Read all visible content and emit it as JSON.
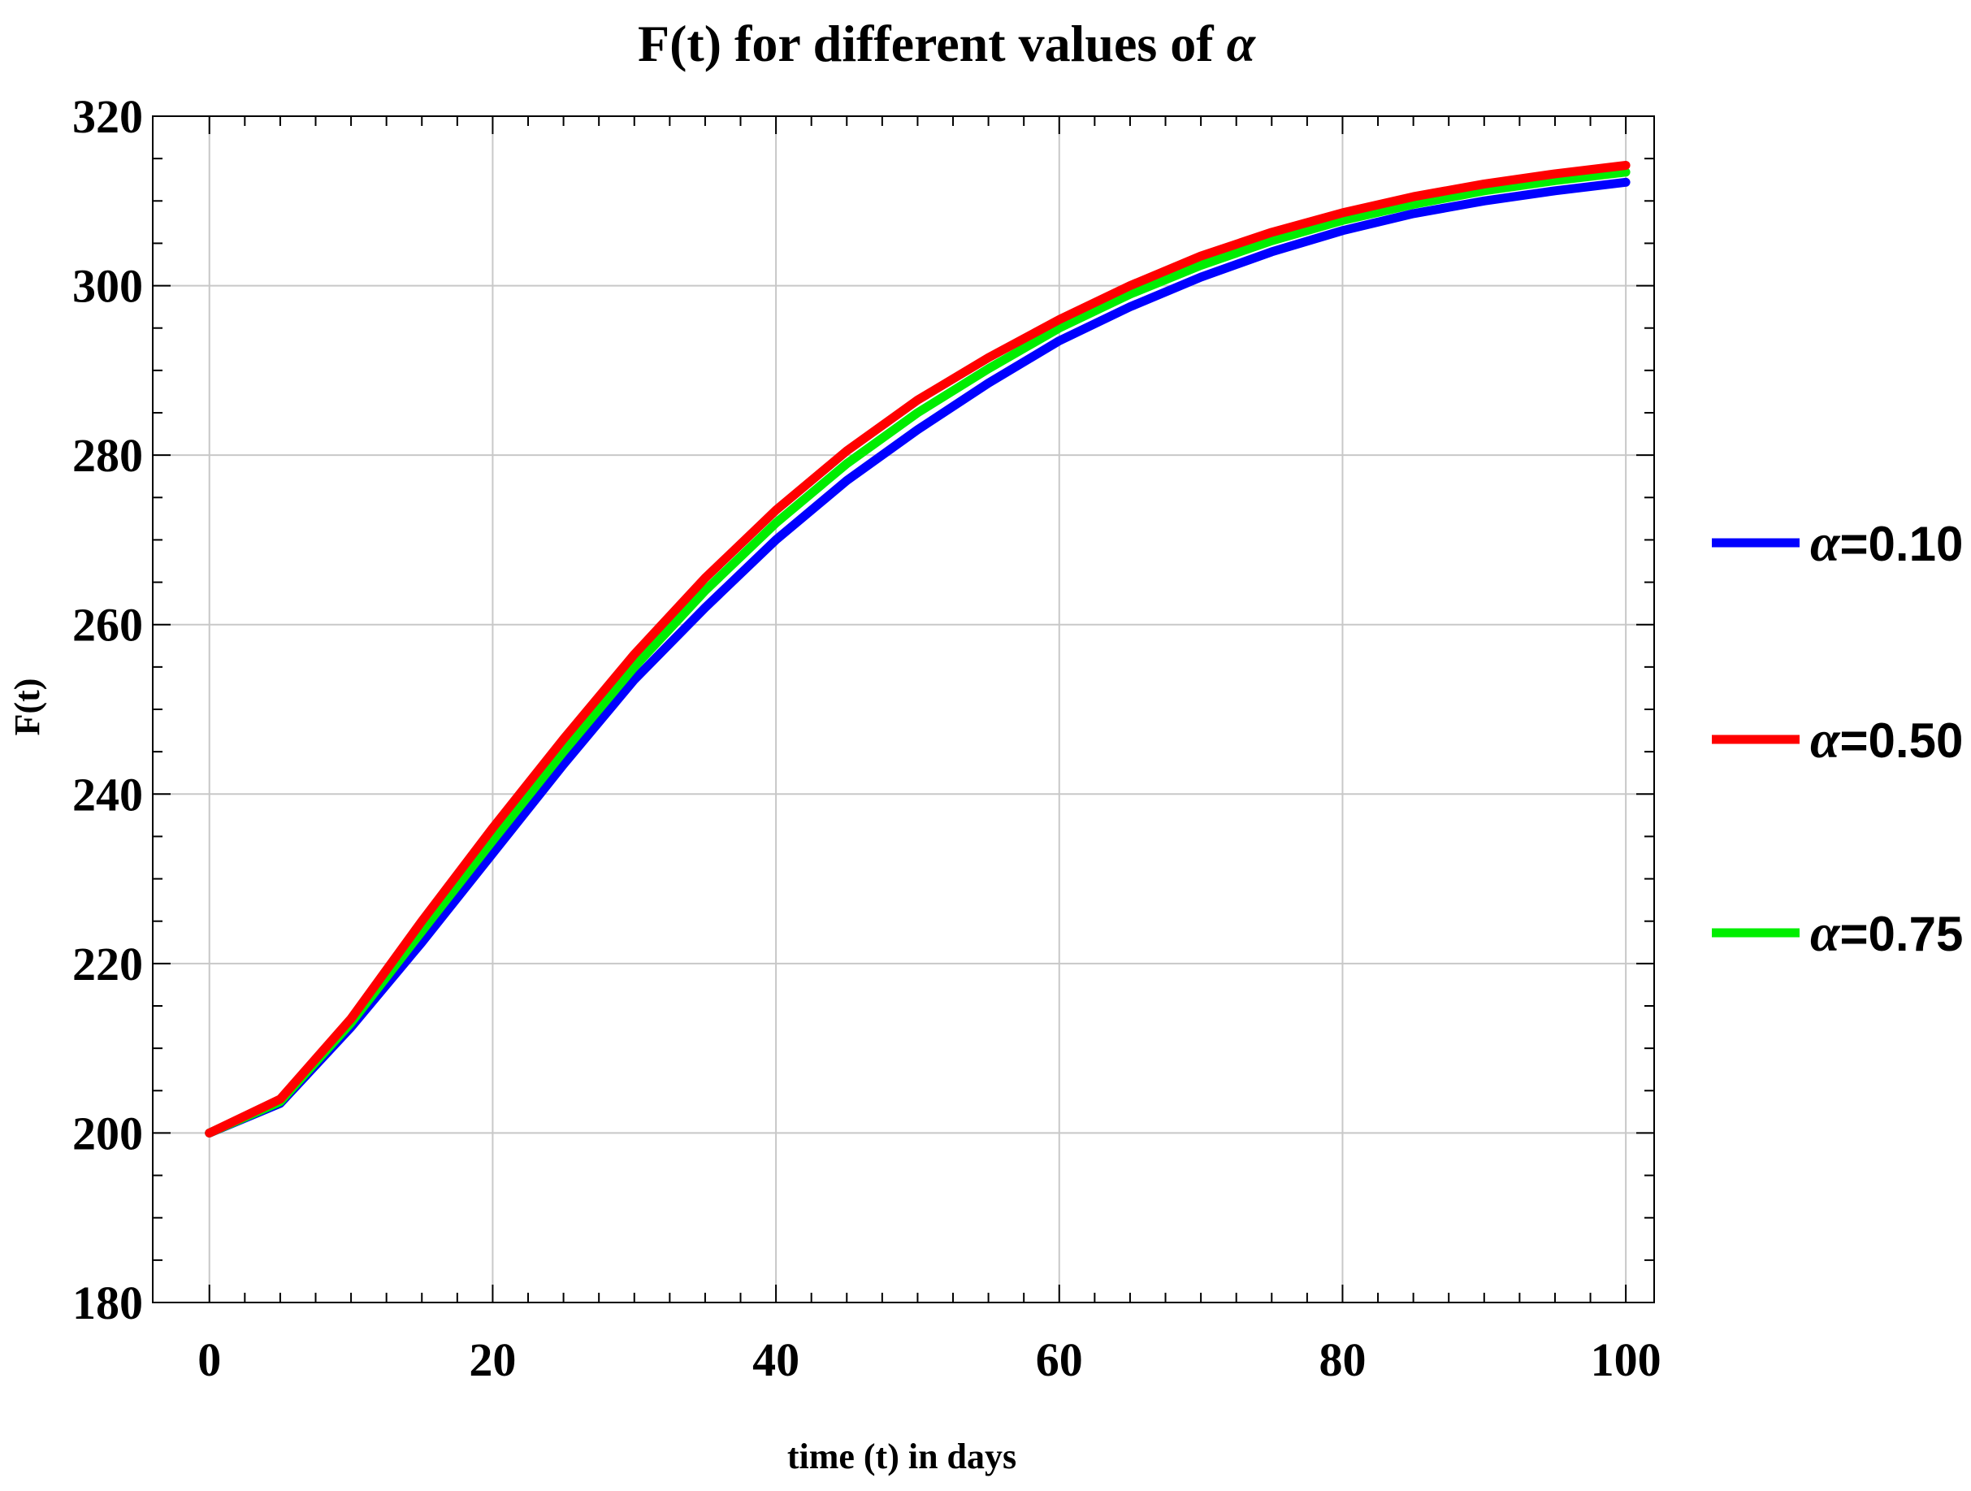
{
  "chart_data": {
    "type": "line",
    "title": "F(t) for different values of",
    "title_symbol": "α",
    "xlabel": "time (t) in days",
    "ylabel": "F(t)",
    "xlim": [
      -4,
      102
    ],
    "ylim": [
      180,
      320
    ],
    "xticks": [
      0,
      20,
      40,
      60,
      80,
      100
    ],
    "yticks": [
      180,
      200,
      220,
      240,
      260,
      280,
      300,
      320
    ],
    "grid": true,
    "legend_position": "right",
    "x": [
      0,
      5,
      10,
      15,
      20,
      25,
      30,
      35,
      40,
      45,
      50,
      55,
      60,
      65,
      70,
      75,
      80,
      85,
      90,
      95,
      100
    ],
    "series": [
      {
        "name": "α=0.10",
        "color": "#0000ff",
        "values": [
          200,
          203.5,
          212.5,
          222.5,
          233,
          243.5,
          253.5,
          262,
          270,
          277,
          283,
          288.5,
          293.5,
          297.5,
          301,
          304,
          306.5,
          308.5,
          310,
          311.2,
          312.2
        ]
      },
      {
        "name": "α=0.50",
        "color": "#ff0000",
        "values": [
          200,
          204,
          213.5,
          225,
          236,
          246.5,
          256.5,
          265.5,
          273.5,
          280.5,
          286.5,
          291.5,
          296,
          300,
          303.5,
          306.3,
          308.6,
          310.5,
          312,
          313.2,
          314.2
        ]
      },
      {
        "name": "α=0.75",
        "color": "#00ee00",
        "values": [
          200,
          203.7,
          213,
          223.8,
          234.5,
          245,
          255,
          264,
          272,
          279,
          285,
          290.2,
          295,
          299,
          302.4,
          305.3,
          307.7,
          309.6,
          311.2,
          312.4,
          313.4
        ]
      }
    ]
  }
}
